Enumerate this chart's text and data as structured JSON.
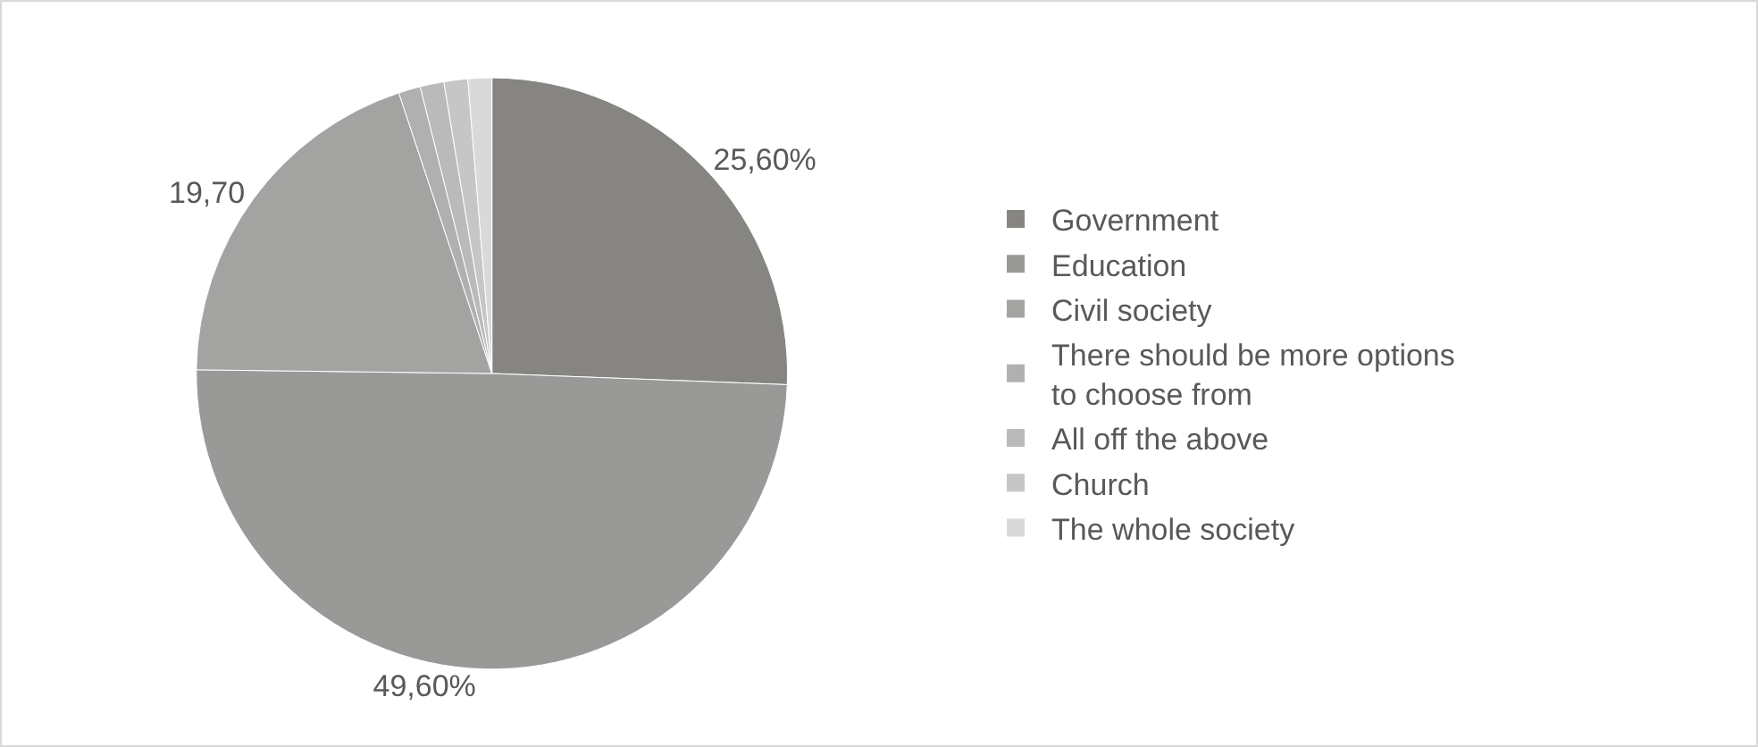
{
  "chart_data": {
    "type": "pie",
    "categories": [
      "Government",
      "Education",
      "Civil society",
      "There should be more options to choose from",
      "All off the above",
      "Church",
      "The whole society"
    ],
    "values": [
      25.6,
      49.6,
      19.7,
      1.2,
      1.3,
      1.3,
      1.3
    ],
    "value_labels": [
      "25,60%",
      "49,60%",
      "19,70",
      null,
      null,
      null,
      null
    ],
    "colors": [
      "#868582",
      "#999998",
      "#a3a3a2",
      "#b0b0b0",
      "#bababa",
      "#c6c6c6",
      "#d9d9d9"
    ],
    "legend": "right"
  }
}
